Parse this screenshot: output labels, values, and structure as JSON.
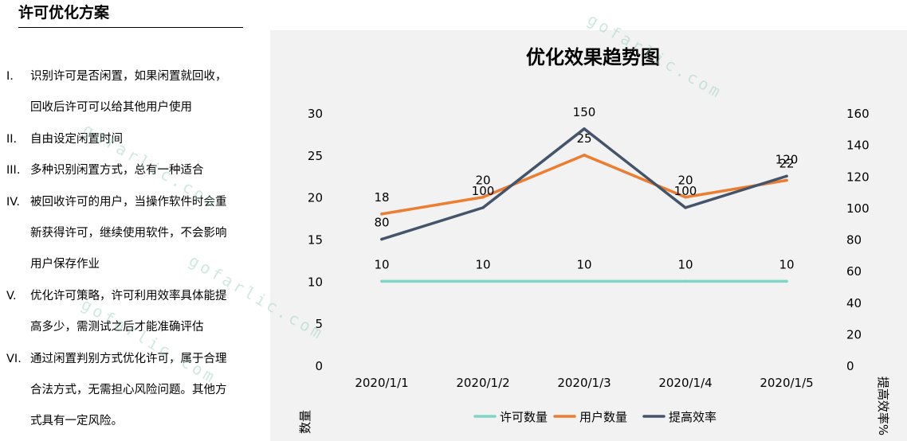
{
  "section": {
    "title": "许可优化方案",
    "items": [
      {
        "num": "I.",
        "lines": [
          "识别许可是否闲置，如果闲置就回收，",
          "回收后许可可以给其他用户使用"
        ]
      },
      {
        "num": "II.",
        "lines": [
          "自由设定闲置时间"
        ]
      },
      {
        "num": "III.",
        "lines": [
          "多种识别闲置方式，总有一种适合"
        ]
      },
      {
        "num": "IV.",
        "lines": [
          "被回收许可的用户，当操作软件时会重",
          "新获得许可，继续使用软件，不会影响",
          "用户保存作业"
        ]
      },
      {
        "num": "V.",
        "lines": [
          "优化许可策略，许可利用效率具体能提",
          "高多少，需测试之后才能准确评估"
        ]
      },
      {
        "num": "VI.",
        "lines": [
          "通过闲置判别方式优化许可，属于合理",
          "合法方式，无需担心风险问题。其他方",
          "式具有一定风险。"
        ]
      }
    ]
  },
  "watermark": "gofarlic.com",
  "chart_data": {
    "type": "line",
    "title": "优化效果趋势图",
    "categories": [
      "2020/1/1",
      "2020/1/2",
      "2020/1/3",
      "2020/1/4",
      "2020/1/5"
    ],
    "ylabel": "数量",
    "y2label": "提高效率%",
    "ylim": [
      0,
      30
    ],
    "y2lim": [
      0,
      160
    ],
    "yticks": [
      "0",
      "5",
      "10",
      "15",
      "20",
      "25",
      "30"
    ],
    "y2ticks": [
      "0",
      "20",
      "40",
      "60",
      "80",
      "100",
      "120",
      "140",
      "160"
    ],
    "legend_position": "bottom",
    "grid": false,
    "series": [
      {
        "name": "许可数量",
        "axis": "left",
        "color": "#7fd6c8",
        "values": [
          10,
          10,
          10,
          10,
          10
        ],
        "labels": [
          "10",
          "10",
          "10",
          "10",
          "10"
        ]
      },
      {
        "name": "用户数量",
        "axis": "left",
        "color": "#ed7d31",
        "values": [
          18,
          20,
          25,
          20,
          22
        ],
        "labels": [
          "18",
          "20",
          "25",
          "20",
          "22"
        ]
      },
      {
        "name": "提高效率",
        "axis": "right",
        "color": "#44546a",
        "values": [
          80,
          100,
          150,
          100,
          120
        ],
        "labels": [
          "80",
          "100",
          "150",
          "100",
          "120"
        ]
      }
    ]
  }
}
